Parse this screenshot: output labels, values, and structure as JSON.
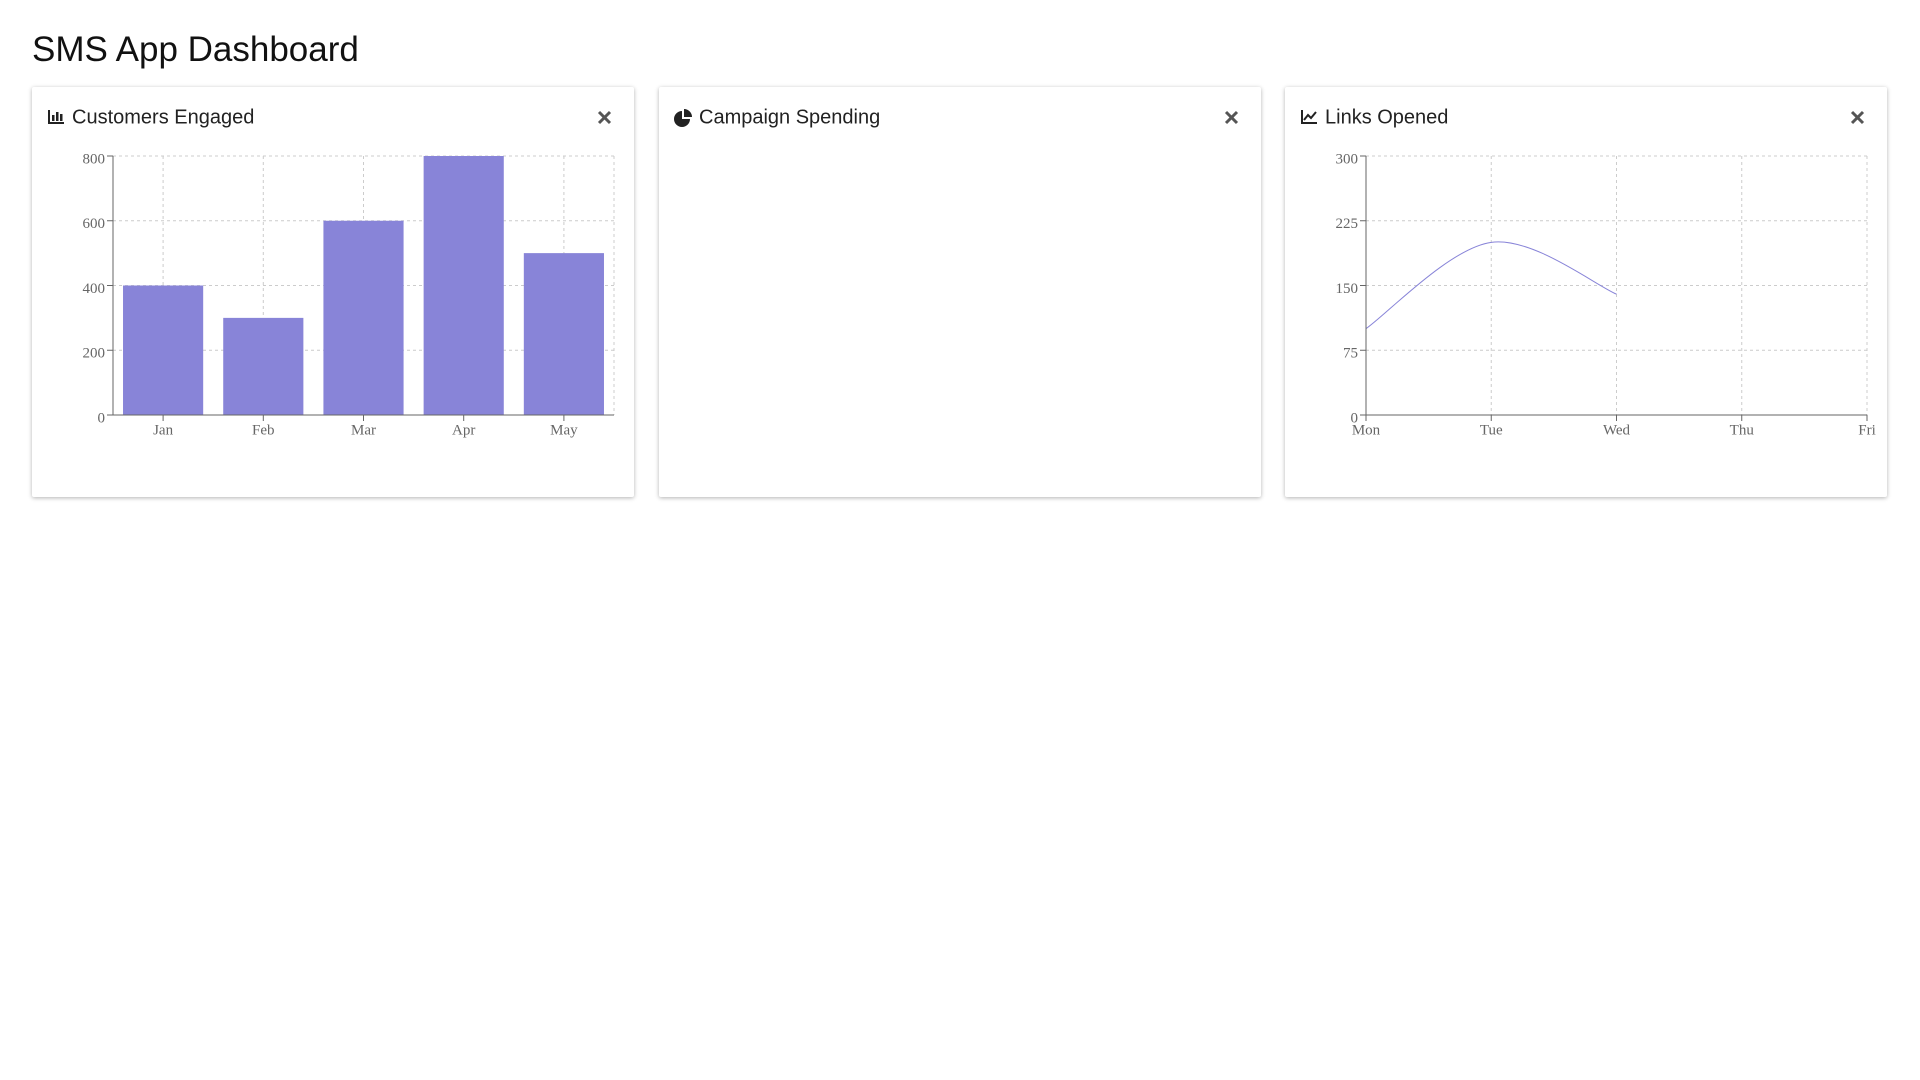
{
  "header": {
    "title": "SMS App Dashboard"
  },
  "chart_data": [
    {
      "type": "bar",
      "title": "Customers Engaged",
      "categories": [
        "Jan",
        "Feb",
        "Mar",
        "Apr",
        "May"
      ],
      "values": [
        400,
        300,
        600,
        800,
        500
      ],
      "color": "#8884d8",
      "ylim": [
        0,
        800
      ],
      "yticks": [
        0,
        200,
        400,
        600,
        800
      ],
      "grid": true
    },
    {
      "type": "pie",
      "title": "Campaign Spending"
    },
    {
      "type": "line",
      "title": "Links Opened",
      "categories": [
        "Mon",
        "Tue",
        "Wed",
        "Thu",
        "Fri"
      ],
      "values": [
        100,
        200,
        140,
        null,
        null
      ],
      "color": "#8884d8",
      "ylim": [
        0,
        300
      ],
      "yticks": [
        0,
        75,
        150,
        225,
        300
      ],
      "grid": true
    }
  ]
}
